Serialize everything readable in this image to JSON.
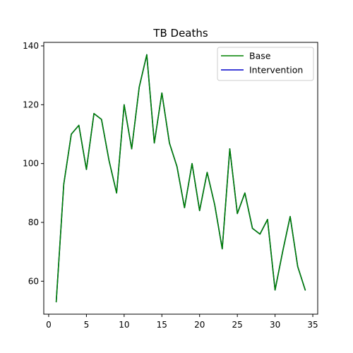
{
  "chart_data": {
    "type": "line",
    "title": "TB Deaths",
    "xlabel": "",
    "ylabel": "",
    "xlim": [
      -0.65,
      35.65
    ],
    "ylim": [
      48.8,
      141.2
    ],
    "x_ticks": [
      0,
      5,
      10,
      15,
      20,
      25,
      30,
      35
    ],
    "y_ticks": [
      60,
      80,
      100,
      120,
      140
    ],
    "grid": false,
    "legend_position": "top-right",
    "x": [
      1,
      2,
      3,
      4,
      5,
      6,
      7,
      8,
      9,
      10,
      11,
      12,
      13,
      14,
      15,
      16,
      17,
      18,
      19,
      20,
      21,
      22,
      23,
      24,
      25,
      26,
      27,
      28,
      29,
      30,
      31,
      32,
      33,
      34
    ],
    "series": [
      {
        "name": "Base",
        "color": "#008000",
        "values": [
          53,
          93,
          110,
          113,
          98,
          117,
          115,
          101,
          90,
          120,
          105,
          126,
          137,
          107,
          124,
          107,
          99,
          85,
          100,
          84,
          97,
          86,
          71,
          105,
          83,
          90,
          78,
          76,
          81,
          57,
          70,
          82,
          65,
          57
        ]
      },
      {
        "name": "Intervention",
        "color": "#0000cc",
        "values": [
          53,
          93,
          110,
          113,
          98,
          117,
          115,
          101,
          90,
          120,
          105,
          126,
          137,
          107,
          124,
          107,
          99,
          85,
          100,
          84,
          97,
          86,
          71,
          105,
          83,
          90,
          78,
          76,
          81,
          57,
          70,
          82,
          65,
          57
        ]
      }
    ]
  }
}
